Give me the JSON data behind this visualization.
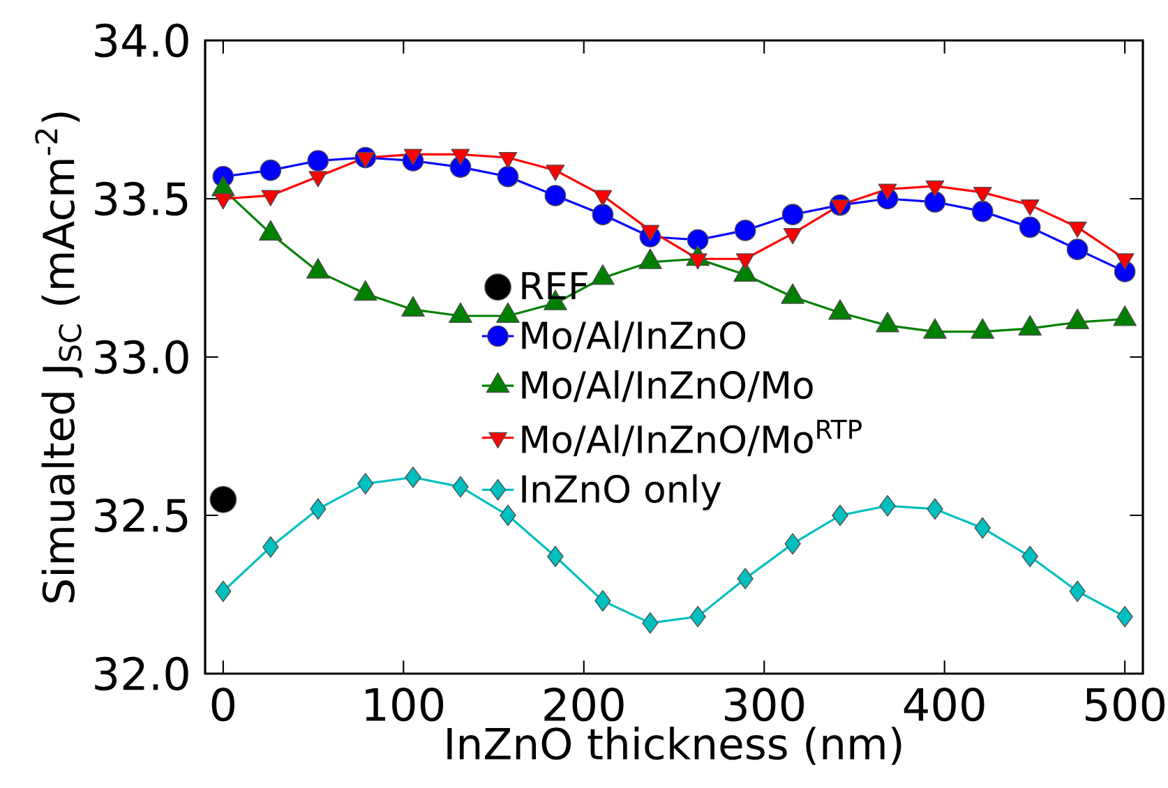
{
  "chart_data": {
    "type": "line",
    "xlabel": "InZnO thickness (nm)",
    "ylabel": "Simualted J$_{SC}$ (mAcm$^{-2}$)",
    "x": [
      0,
      26.3,
      52.6,
      78.9,
      105.3,
      131.6,
      157.9,
      184.2,
      210.5,
      236.8,
      263.2,
      289.5,
      315.8,
      342.1,
      368.4,
      394.7,
      421.1,
      447.4,
      473.7,
      500
    ],
    "series": [
      {
        "name": "REF",
        "type": "scatter",
        "color": "#000000",
        "marker": "circle",
        "x": [
          0
        ],
        "values": [
          32.55
        ]
      },
      {
        "name": "Mo/Al/InZnO",
        "color": "#0000ff",
        "marker": "circle",
        "values": [
          33.57,
          33.59,
          33.62,
          33.63,
          33.62,
          33.6,
          33.57,
          33.51,
          33.45,
          33.38,
          33.37,
          33.4,
          33.45,
          33.48,
          33.5,
          33.49,
          33.46,
          33.41,
          33.34,
          33.27
        ]
      },
      {
        "name": "Mo/Al/InZnO/Mo",
        "color": "#008000",
        "marker": "triangle",
        "values": [
          33.53,
          33.39,
          33.27,
          33.2,
          33.15,
          33.13,
          33.13,
          33.17,
          33.25,
          33.3,
          33.31,
          33.26,
          33.19,
          33.14,
          33.1,
          33.08,
          33.08,
          33.09,
          33.11,
          33.12
        ]
      },
      {
        "name": "Mo/Al/InZnO/Mo$^{RTP}$",
        "color": "#ff0000",
        "marker": "triangle_down",
        "values": [
          33.5,
          33.51,
          33.57,
          33.63,
          33.64,
          33.64,
          33.63,
          33.59,
          33.51,
          33.4,
          33.31,
          33.31,
          33.39,
          33.48,
          33.53,
          33.54,
          33.52,
          33.48,
          33.41,
          33.31
        ]
      },
      {
        "name": "InZnO only",
        "color": "#00bfbf",
        "marker": "diamond",
        "values": [
          32.26,
          32.4,
          32.52,
          32.6,
          32.62,
          32.59,
          32.5,
          32.37,
          32.23,
          32.16,
          32.18,
          32.3,
          32.41,
          32.5,
          32.53,
          32.52,
          32.46,
          32.37,
          32.26,
          32.18
        ]
      }
    ],
    "xlim": [
      -10,
      510
    ],
    "ylim": [
      32.0,
      34.0
    ],
    "xticks": [
      0,
      100,
      200,
      300,
      400,
      500
    ],
    "yticks": [
      {
        "value": 32.0,
        "label": "32.0"
      },
      {
        "value": 32.5,
        "label": "32.5"
      },
      {
        "value": 33.0,
        "label": "33.0"
      },
      {
        "value": 33.5,
        "label": "33.5"
      },
      {
        "value": 34.0,
        "label": "34.0"
      }
    ],
    "grid": false,
    "legend": "center"
  }
}
